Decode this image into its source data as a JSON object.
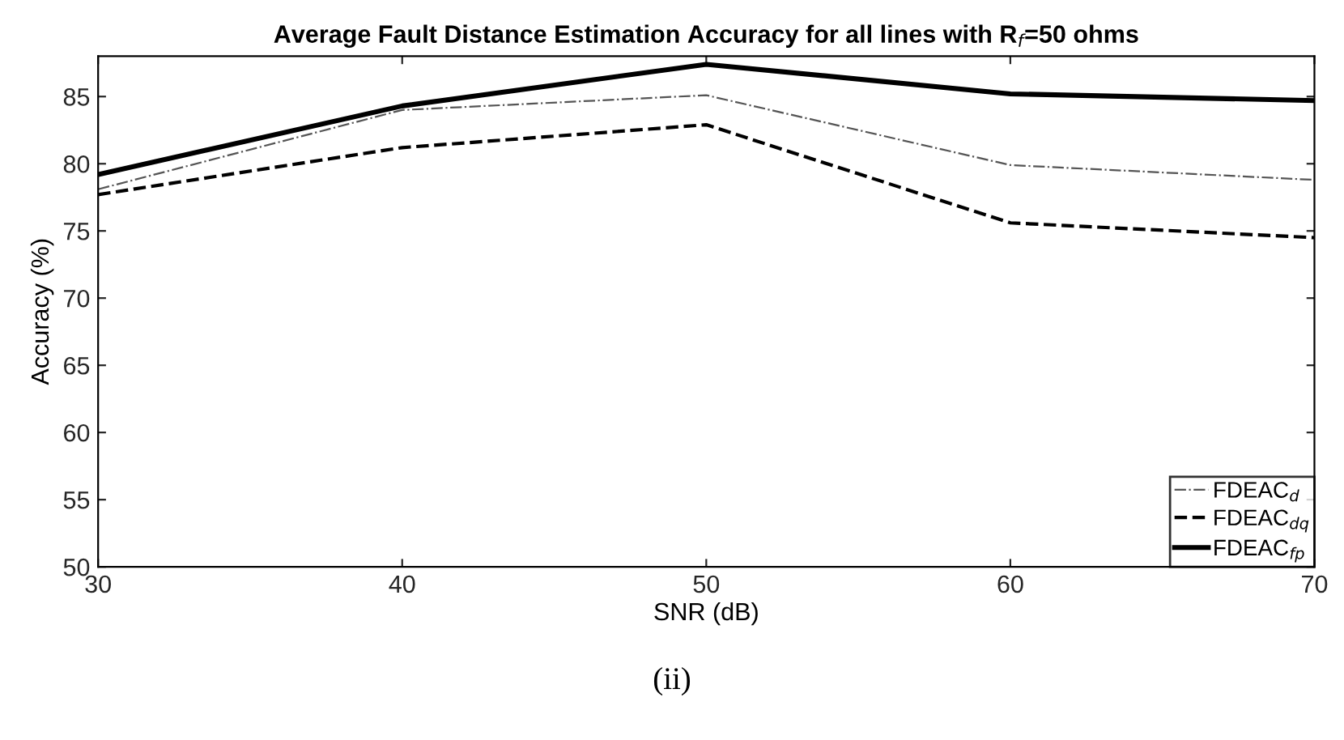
{
  "chart_data": {
    "type": "line",
    "title": "Average Fault Distance Estimation Accuracy for all lines with R$_{f}$=50 ohms",
    "xlabel": "SNR (dB)",
    "ylabel": "Accuracy (%)",
    "x": [
      30,
      40,
      50,
      60,
      70
    ],
    "series": [
      {
        "name": "FDEAC$_{d}$",
        "color": "#555555",
        "line_style": "dashdot",
        "values": [
          78.1,
          84.0,
          85.1,
          79.9,
          78.8
        ]
      },
      {
        "name": "FDEAC$_{dq}$",
        "color": "#000000",
        "line_style": "dashed",
        "values": [
          77.7,
          81.2,
          82.9,
          75.6,
          74.5
        ]
      },
      {
        "name": "FDEAC$_{fp}$",
        "color": "#000000",
        "line_style": "solid",
        "values": [
          79.2,
          84.3,
          87.4,
          85.2,
          84.7
        ]
      }
    ],
    "xlim": [
      30,
      70
    ],
    "ylim": [
      50,
      88
    ],
    "xticks": [
      30,
      40,
      50,
      60,
      70
    ],
    "yticks": [
      50,
      55,
      60,
      65,
      70,
      75,
      80,
      85
    ],
    "grid": false,
    "legend": "bottom right",
    "marker": "none",
    "annotations": [
      "(ii)"
    ]
  }
}
